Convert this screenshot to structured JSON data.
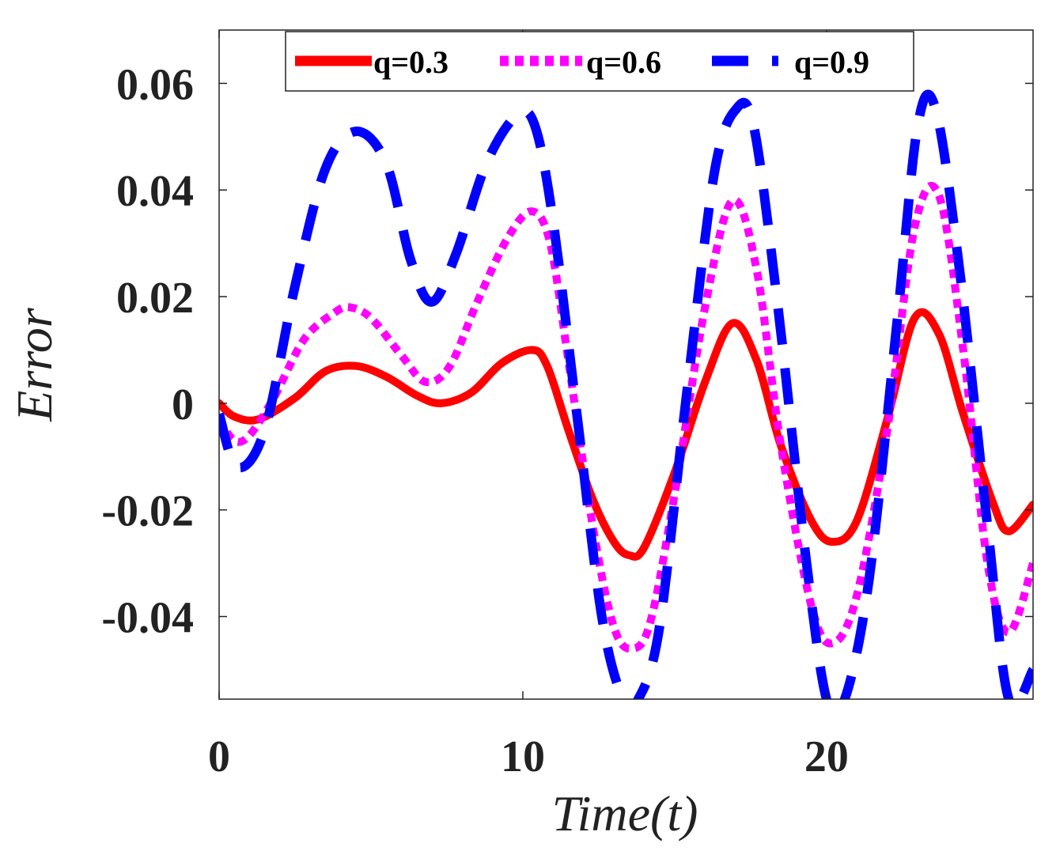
{
  "chart_data": {
    "type": "line",
    "title": "",
    "xlabel": "Time(t)",
    "ylabel": "Error",
    "xlim": [
      0,
      26.8
    ],
    "ylim": [
      -0.0555,
      0.07
    ],
    "xticks": [
      0,
      10,
      20
    ],
    "xtick_labels": [
      "0",
      "10",
      "20"
    ],
    "yticks": [
      -0.04,
      -0.02,
      0,
      0.02,
      0.04,
      0.06
    ],
    "ytick_labels": [
      "-0.04",
      "-0.02",
      "0",
      "0.02",
      "0.04",
      "0.06"
    ],
    "grid": false,
    "legend_position": "top",
    "series": [
      {
        "name": "q=0.3",
        "color": "#ff0000",
        "style": "solid",
        "x": [
          0,
          0.5,
          1.3,
          2.5,
          3.5,
          4.5,
          5.5,
          6.5,
          7.3,
          8.3,
          9.3,
          10.3,
          10.8,
          11.5,
          12.3,
          13,
          13.5,
          14,
          15,
          16,
          16.9,
          17.7,
          18.5,
          19.5,
          20.2,
          21,
          22,
          22.9,
          23.7,
          24.5,
          25.5,
          26,
          26.8
        ],
        "values": [
          0,
          -0.0025,
          -0.003,
          0.001,
          0.006,
          0.007,
          0.005,
          0.0015,
          0,
          0.002,
          0.0075,
          0.01,
          0.007,
          -0.005,
          -0.018,
          -0.026,
          -0.0285,
          -0.027,
          -0.013,
          0.004,
          0.015,
          0.008,
          -0.008,
          -0.022,
          -0.026,
          -0.022,
          -0.003,
          0.016,
          0.013,
          -0.002,
          -0.019,
          -0.024,
          -0.019
        ]
      },
      {
        "name": "q=0.6",
        "color": "#ff00ff",
        "style": "dotted",
        "x": [
          0,
          0.5,
          1,
          1.8,
          2.8,
          3.8,
          4.3,
          5,
          6,
          6.8,
          7.6,
          8.5,
          9.5,
          10.3,
          10.9,
          11.5,
          12.3,
          13,
          13.6,
          14.2,
          15,
          16,
          16.9,
          17.7,
          18.5,
          19.5,
          20.2,
          21,
          22,
          22.9,
          23.7,
          24.5,
          25.3,
          26,
          26.8
        ],
        "values": [
          -0.003,
          -0.007,
          -0.006,
          0.001,
          0.012,
          0.017,
          0.018,
          0.016,
          0.009,
          0.004,
          0.007,
          0.019,
          0.031,
          0.036,
          0.03,
          0.008,
          -0.023,
          -0.042,
          -0.046,
          -0.041,
          -0.017,
          0.018,
          0.038,
          0.025,
          -0.008,
          -0.038,
          -0.045,
          -0.036,
          -0.005,
          0.033,
          0.039,
          0.01,
          -0.03,
          -0.043,
          -0.03
        ]
      },
      {
        "name": "q=0.9",
        "color": "#0000ff",
        "style": "dashed",
        "x": [
          0,
          0.6,
          1.5,
          2.5,
          3.5,
          4.5,
          5.5,
          6.3,
          7,
          7.8,
          8.8,
          9.8,
          10.4,
          11,
          11.8,
          12.6,
          13.3,
          13.8,
          14.5,
          15.4,
          16.3,
          17,
          17.6,
          18.4,
          19.3,
          20,
          20.6,
          21.4,
          22.3,
          23,
          23.6,
          24.4,
          25.3,
          26,
          26.8
        ],
        "values": [
          -0.002,
          -0.012,
          -0.005,
          0.022,
          0.044,
          0.051,
          0.045,
          0.027,
          0.019,
          0.028,
          0.045,
          0.054,
          0.052,
          0.034,
          -0.003,
          -0.04,
          -0.0555,
          -0.0555,
          -0.042,
          0.002,
          0.043,
          0.055,
          0.052,
          0.018,
          -0.028,
          -0.0555,
          -0.0555,
          -0.033,
          0.014,
          0.052,
          0.055,
          0.024,
          -0.023,
          -0.0555,
          -0.05
        ]
      }
    ]
  }
}
